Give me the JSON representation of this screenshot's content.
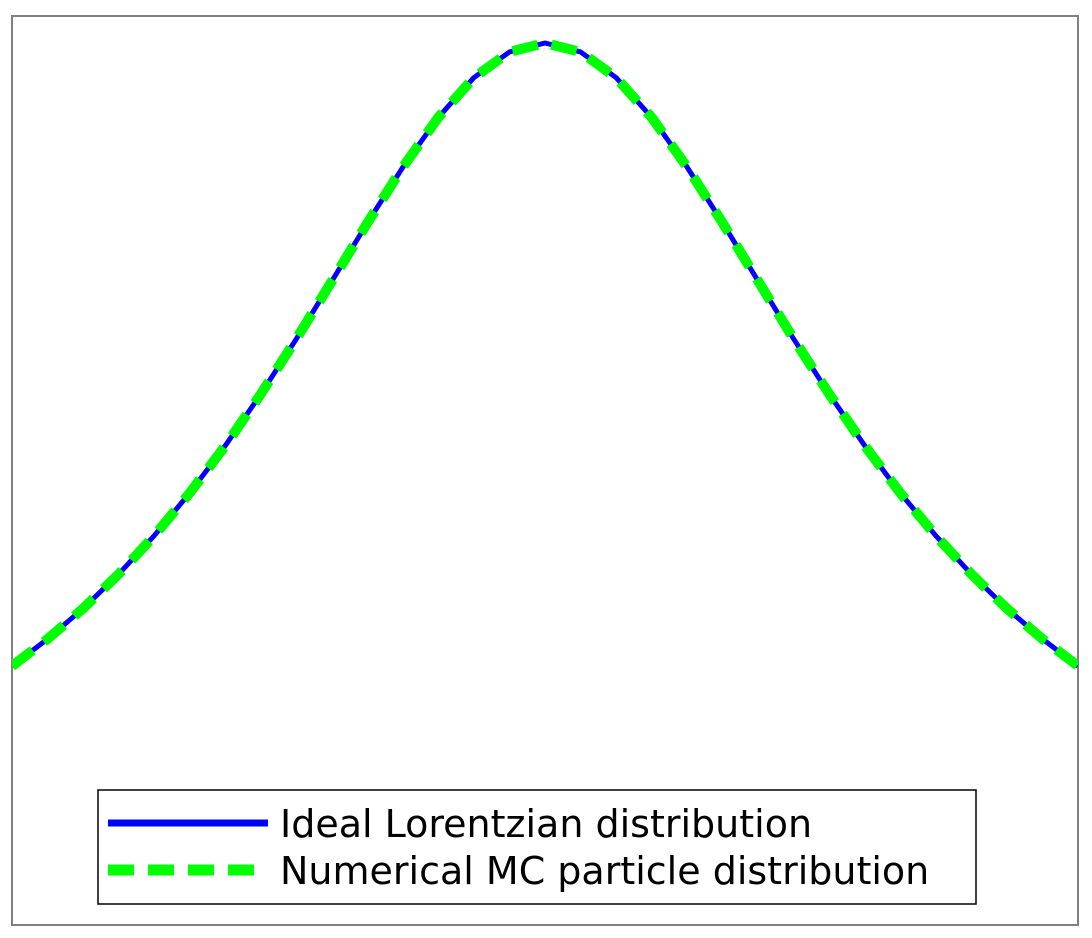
{
  "chart_data": {
    "type": "line",
    "title": "",
    "xlabel": "",
    "ylabel": "",
    "xlim": [
      -3,
      3
    ],
    "ylim": [
      0.02,
      1.03
    ],
    "grid": false,
    "legend_position": "lower-center",
    "x": [
      -3.0,
      -2.8,
      -2.6,
      -2.4,
      -2.2,
      -2.0,
      -1.8,
      -1.6,
      -1.4,
      -1.2,
      -1.0,
      -0.8,
      -0.6,
      -0.4,
      -0.2,
      0.0,
      0.2,
      0.4,
      0.6,
      0.8,
      1.0,
      1.2,
      1.4,
      1.6,
      1.8,
      2.0,
      2.2,
      2.4,
      2.6,
      2.8,
      3.0
    ],
    "series": [
      {
        "name": "Ideal Lorentzian distribution",
        "color": "#0000ff",
        "style": "solid",
        "values": [
          0.3077,
          0.3378,
          0.3717,
          0.4098,
          0.4525,
          0.5,
          0.5525,
          0.6098,
          0.6711,
          0.7353,
          0.8,
          0.8621,
          0.9174,
          0.9615,
          0.9901,
          1.0,
          0.9901,
          0.9615,
          0.9174,
          0.8621,
          0.8,
          0.7353,
          0.6711,
          0.6098,
          0.5525,
          0.5,
          0.4525,
          0.4098,
          0.3717,
          0.3378,
          0.3077
        ]
      },
      {
        "name": "Numerical MC particle distribution",
        "color": "#00ff00",
        "style": "dashed",
        "values": [
          0.3077,
          0.3378,
          0.3717,
          0.4098,
          0.4525,
          0.5,
          0.5525,
          0.6098,
          0.6711,
          0.7353,
          0.8,
          0.8621,
          0.9174,
          0.9615,
          0.9901,
          1.0,
          0.9901,
          0.9615,
          0.9174,
          0.8621,
          0.8,
          0.7353,
          0.6711,
          0.6098,
          0.5525,
          0.5,
          0.4525,
          0.4098,
          0.3717,
          0.3378,
          0.3077
        ]
      }
    ]
  }
}
